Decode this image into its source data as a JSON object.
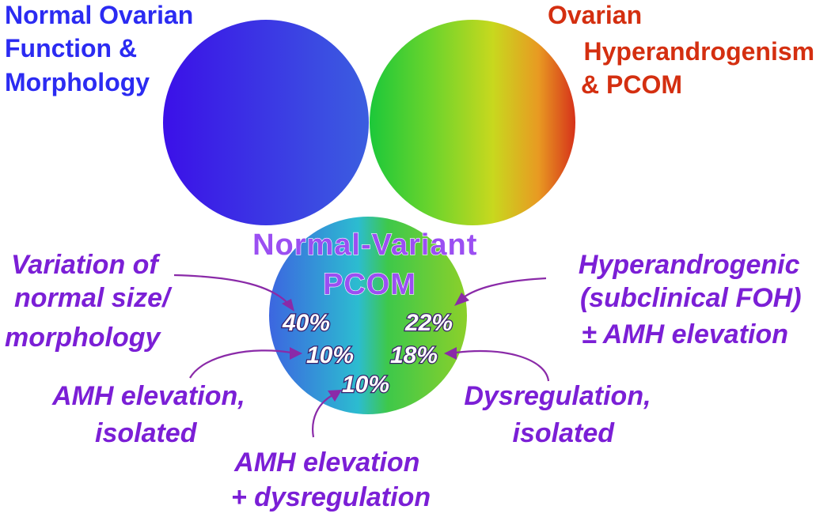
{
  "circles": {
    "normal": {
      "colors": [
        "#3b10e8",
        "#3b5ee0"
      ]
    },
    "hyper": {
      "colors": [
        "#1cc83a",
        "#6cd42c",
        "#c8d81e",
        "#e89a22",
        "#d6321a"
      ]
    },
    "variant": {
      "colors": [
        "#3c66e0",
        "#2cbcd0",
        "#3ec84a",
        "#8cd02a"
      ]
    }
  },
  "titles": {
    "normal": [
      "Normal Ovarian",
      "Function &",
      "Morphology"
    ],
    "hyper": [
      "Ovarian",
      "Hyperandrogenism",
      "& PCOM"
    ],
    "variant": [
      "Normal-Variant",
      "PCOM"
    ]
  },
  "percentages": {
    "size_variation": "40%",
    "hyperandrogenic": "22%",
    "amh_isolated": "10%",
    "dysregulation_isolated": "18%",
    "amh_plus_dysregulation": "10%"
  },
  "categories": {
    "size_variation": [
      "Variation of",
      "normal size/",
      "morphology"
    ],
    "hyperandrogenic": [
      "Hyperandrogenic",
      "(subclinical FOH)",
      "± AMH elevation"
    ],
    "amh_isolated": [
      "AMH elevation,",
      "isolated"
    ],
    "dysregulation_isolated": [
      "Dysregulation,",
      "isolated"
    ],
    "amh_plus_dysregulation": [
      "AMH elevation",
      "+ dysregulation"
    ]
  },
  "colors": {
    "label_purple": "#7b1fd6",
    "title_blue": "#2b2bf2",
    "title_red": "#d42f10"
  }
}
